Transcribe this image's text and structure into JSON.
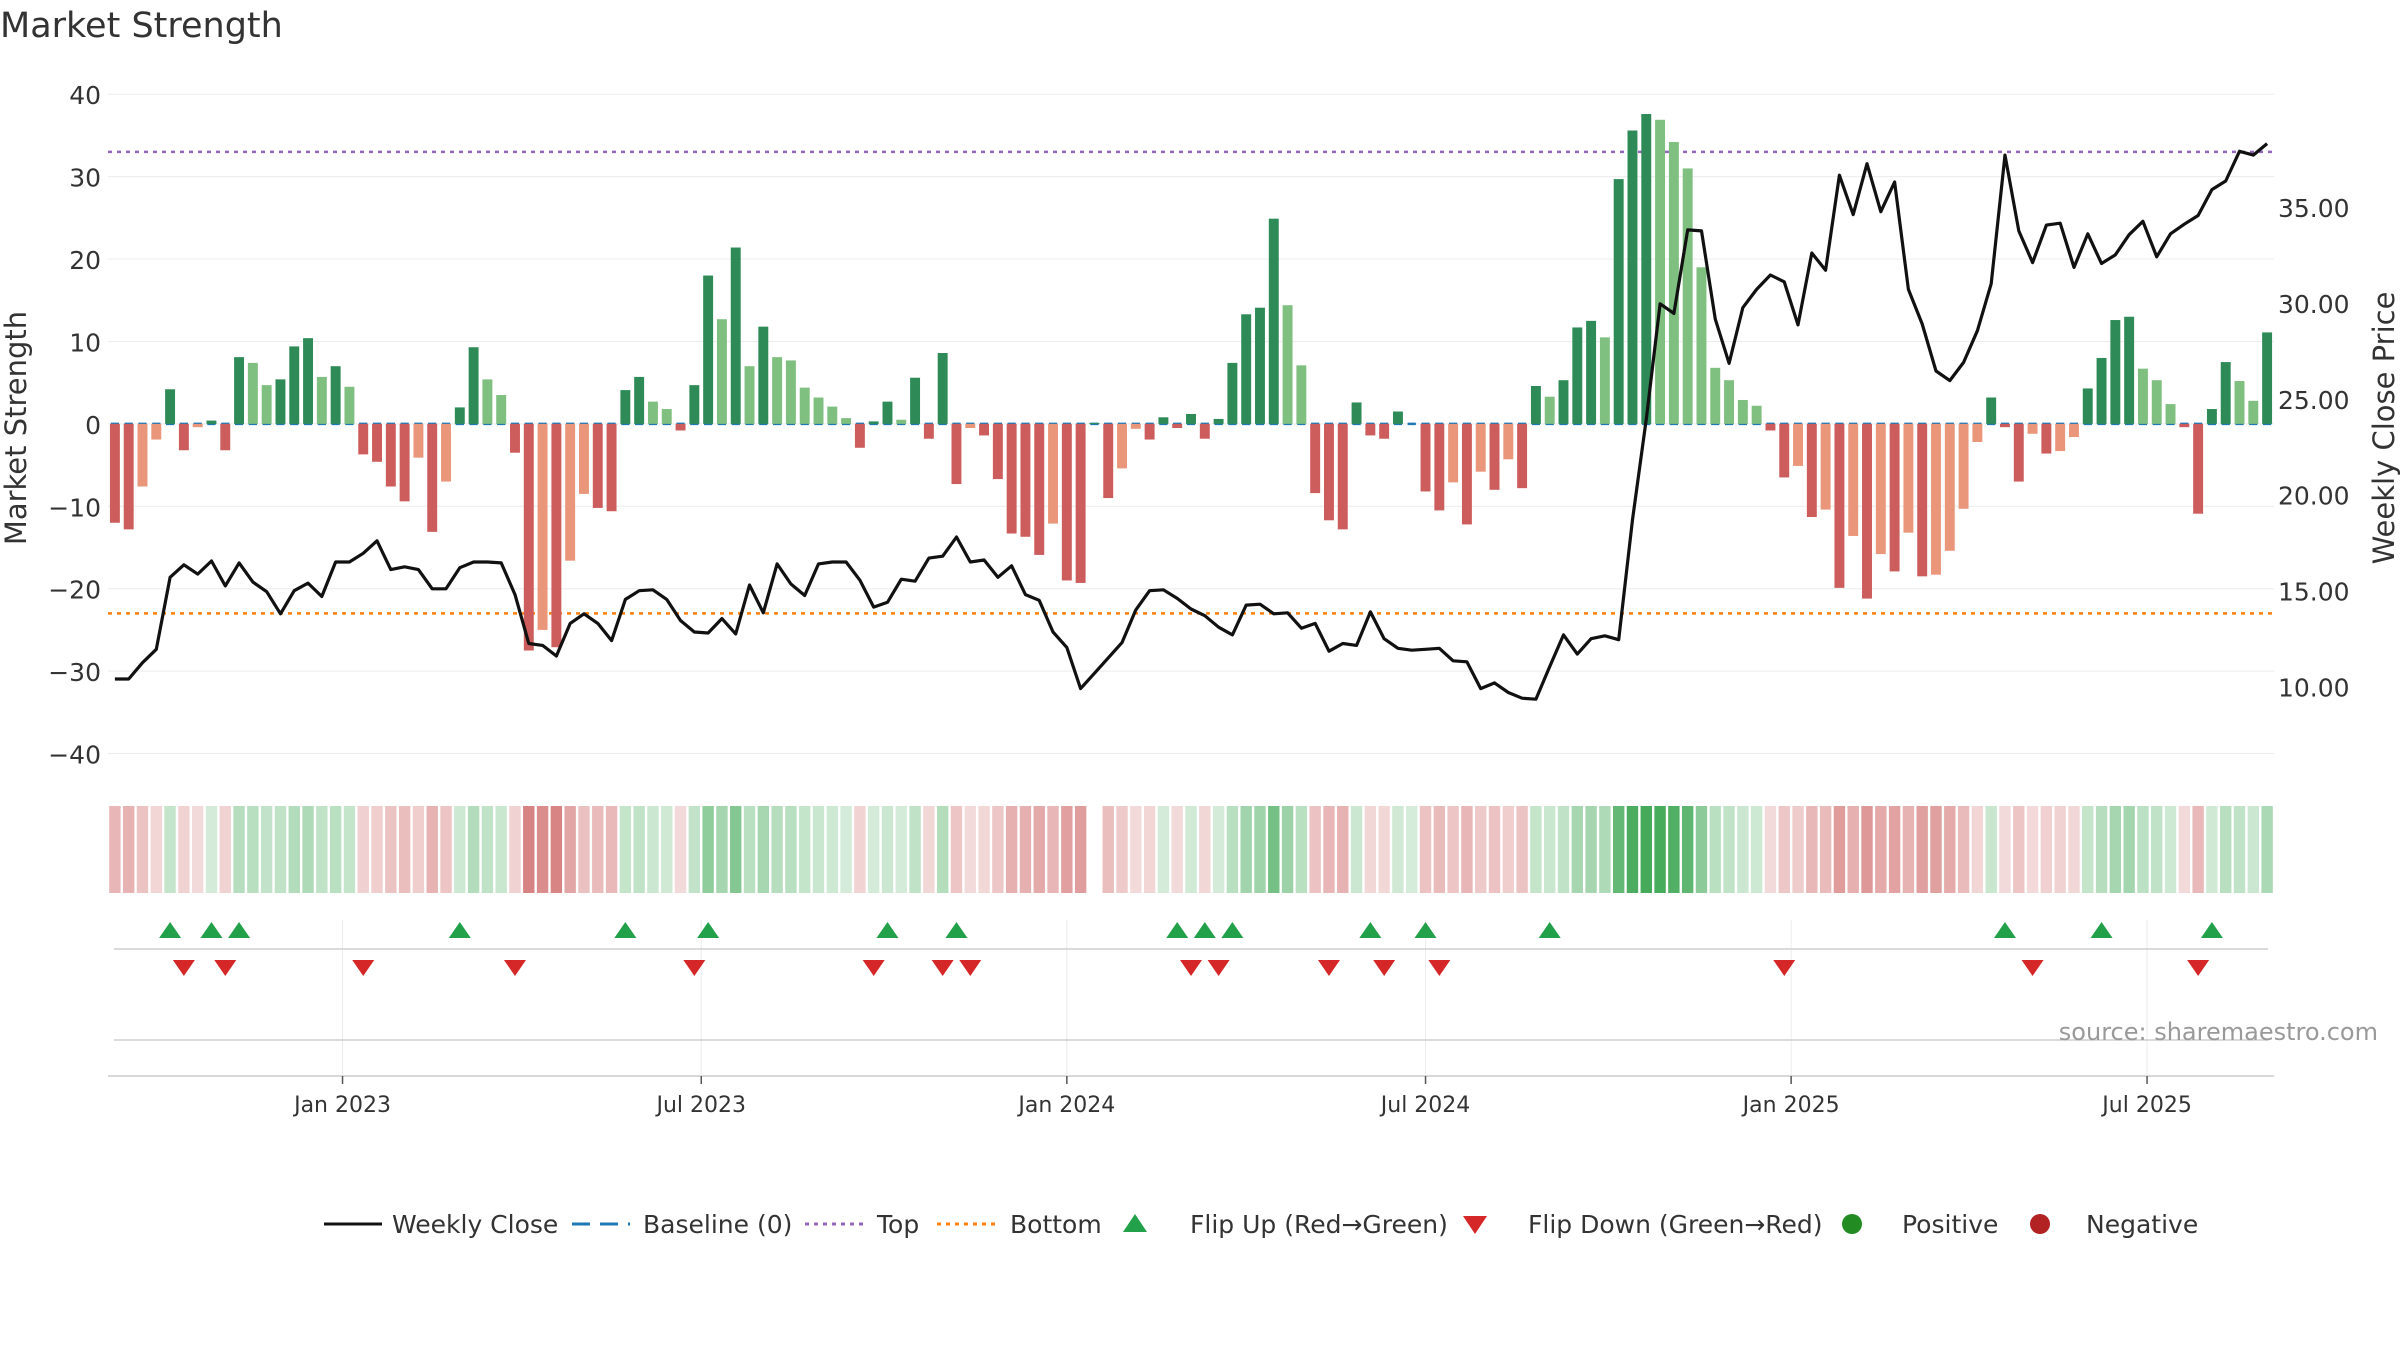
{
  "title": "Market Strength",
  "source": "source: sharemaestro.com",
  "colors": {
    "pos_strong": "#2e8b57",
    "pos_light": "#7fbf7f",
    "neg_strong": "#cd5c5c",
    "neg_light": "#e9967a",
    "price_line": "#111111",
    "baseline": "#1f77b4",
    "top_line": "#9467bd",
    "bottom_line": "#ff7f0e",
    "flip_up": "#22a04a",
    "flip_down": "#d62728",
    "positive": "#228b22",
    "negative": "#b22222"
  },
  "chart_data": {
    "type": "bar",
    "title": "Market Strength",
    "ylabel": "Market Strength",
    "y2label": "Weekly Close Price",
    "ylim": [
      -42,
      41
    ],
    "y2lim": [
      5.71,
      41.35
    ],
    "yticks": [
      40,
      30,
      20,
      10,
      0,
      -10,
      -20,
      -30,
      -40
    ],
    "yticklabels": [
      "40",
      "30",
      "20",
      "10",
      "0",
      "−10",
      "−20",
      "−30",
      "−40"
    ],
    "y2ticks": [
      35,
      30,
      25,
      20,
      15,
      10
    ],
    "y2ticklabels": [
      "35.00",
      "30.00",
      "25.00",
      "20.00",
      "15.00",
      "10.00"
    ],
    "top": 33,
    "bottom": -23,
    "baseline": 0,
    "x_start": "2022-09-15",
    "week_days": 7,
    "xticks": [
      {
        "label": "Jan 2023",
        "week": 17
      },
      {
        "label": "Jul 2023",
        "week": 43
      },
      {
        "label": "Jan 2024",
        "week": 69.5
      },
      {
        "label": "Jul 2024",
        "week": 95.5
      },
      {
        "label": "Jan 2025",
        "week": 122
      },
      {
        "label": "Jul 2025",
        "week": 147.8
      }
    ],
    "strength": [
      -12,
      -12.8,
      -7.6,
      -1.9,
      4.2,
      -3.2,
      -0.4,
      0.4,
      -3.2,
      8.1,
      7.4,
      4.7,
      5.4,
      9.4,
      10.4,
      5.7,
      7,
      4.5,
      -3.7,
      -4.6,
      -7.6,
      -9.4,
      -4.1,
      -13.1,
      -7,
      2,
      9.3,
      5.4,
      3.5,
      -3.5,
      -27.5,
      -25,
      -27.1,
      -16.6,
      -8.5,
      -10.2,
      -10.6,
      4.1,
      5.7,
      2.7,
      1.8,
      -0.8,
      4.7,
      18,
      12.7,
      21.4,
      7,
      11.8,
      8.1,
      7.7,
      4.4,
      3.2,
      2.1,
      0.7,
      -2.9,
      0.3,
      2.7,
      0.5,
      5.6,
      -1.8,
      8.6,
      -7.3,
      -0.5,
      -1.4,
      -6.7,
      -13.3,
      -13.7,
      -15.9,
      -12.1,
      -19,
      -19.3,
      0.1,
      -9,
      -5.4,
      -0.6,
      -1.9,
      0.8,
      -0.5,
      1.2,
      -1.8,
      0.6,
      7.4,
      13.3,
      14.1,
      24.9,
      14.4,
      7.1,
      -8.4,
      -11.7,
      -12.8,
      2.6,
      -1.4,
      -1.8,
      1.5,
      0,
      -8.2,
      -10.5,
      -7.1,
      -12.2,
      -5.8,
      -8,
      -4.3,
      -7.8,
      4.6,
      3.3,
      5.3,
      11.7,
      12.5,
      10.5,
      29.7,
      35.6,
      37.6,
      36.9,
      34.2,
      31,
      19,
      6.8,
      5.3,
      2.9,
      2.2,
      -0.8,
      -6.5,
      -5.1,
      -11.3,
      -10.4,
      -19.9,
      -13.6,
      -21.2,
      -15.8,
      -17.9,
      -13.2,
      -18.5,
      -18.3,
      -15.4,
      -10.3,
      -2.2,
      3.2,
      -0.4,
      -7,
      -1.2,
      -3.6,
      -3.3,
      -1.6,
      4.3,
      8,
      12.6,
      13,
      6.7,
      5.3,
      2.4,
      -0.4,
      -10.9,
      1.8,
      7.5,
      5.2,
      2.8,
      11.1
    ],
    "weekly_close": [
      10.45,
      10.45,
      11.3,
      12,
      15.75,
      16.4,
      15.92,
      16.6,
      15.3,
      16.5,
      15.5,
      15,
      13.85,
      15.05,
      15.45,
      14.75,
      16.55,
      16.55,
      17,
      17.65,
      16.15,
      16.3,
      16.15,
      15.15,
      15.15,
      16.25,
      16.55,
      16.55,
      16.5,
      14.85,
      12.3,
      12.2,
      11.65,
      13.35,
      13.85,
      13.35,
      12.45,
      14.6,
      15.05,
      15.1,
      14.6,
      13.5,
      12.9,
      12.85,
      13.6,
      12.8,
      15.35,
      13.9,
      16.45,
      15.4,
      14.8,
      16.45,
      16.55,
      16.55,
      15.6,
      14.2,
      14.45,
      15.65,
      15.55,
      16.75,
      16.85,
      17.85,
      16.55,
      16.65,
      15.75,
      16.35,
      14.85,
      14.55,
      12.9,
      12.1,
      9.95,
      10.75,
      11.55,
      12.35,
      14.05,
      15.05,
      15.1,
      14.65,
      14.1,
      13.75,
      13.15,
      12.75,
      14.3,
      14.35,
      13.85,
      13.9,
      13.1,
      13.35,
      11.9,
      12.3,
      12.2,
      13.95,
      12.55,
      12.05,
      11.95,
      12,
      12.05,
      11.4,
      11.35,
      9.95,
      10.25,
      9.75,
      9.45,
      9.4,
      11.1,
      12.75,
      11.75,
      12.55,
      12.7,
      12.5,
      18.75,
      24,
      30,
      29.5,
      33.85,
      33.8,
      29.2,
      26.9,
      29.8,
      30.75,
      31.5,
      31.15,
      28.9,
      32.65,
      31.75,
      36.7,
      34.65,
      37.3,
      34.8,
      36.35,
      30.75,
      28.95,
      26.5,
      26,
      26.95,
      28.6,
      31.05,
      37.75,
      33.8,
      32.15,
      34.1,
      34.2,
      31.9,
      33.65,
      32.1,
      32.55,
      33.6,
      34.3,
      32.45,
      33.65,
      34.15,
      34.6,
      35.95,
      36.4,
      37.95,
      37.75,
      38.35
    ],
    "signal_strip": [
      -12,
      -12.8,
      -7.6,
      -1.9,
      4.2,
      -3.2,
      -0.4,
      0.4,
      -3.2,
      8.1,
      7.4,
      4.7,
      5.4,
      9.4,
      10.4,
      5.7,
      7,
      4.5,
      -3.7,
      -4.6,
      -7.6,
      -9.4,
      -4.1,
      -13.1,
      -7,
      2,
      9.3,
      5.4,
      3.5,
      -3.5,
      -27.5,
      -25,
      -27.1,
      -16.6,
      -8.5,
      -10.2,
      -10.6,
      4.1,
      5.7,
      2.7,
      1.8,
      -0.8,
      4.7,
      18,
      12.7,
      21.4,
      7,
      11.8,
      8.1,
      7.7,
      4.4,
      3.2,
      2.1,
      0.7,
      -2.9,
      0.3,
      2.7,
      0.5,
      5.6,
      -1.8,
      8.6,
      -7.3,
      -0.5,
      -1.4,
      -6.7,
      -13.3,
      -13.7,
      -15.9,
      -12.1,
      -19,
      -19.3,
      null,
      -9,
      -5.4,
      -0.6,
      -1.9,
      0.8,
      -0.5,
      1.2,
      -1.8,
      0.6,
      7.4,
      13.3,
      14.1,
      24.9,
      14.4,
      7.1,
      -8.4,
      -11.7,
      -12.8,
      2.6,
      -1.4,
      -1.8,
      1.5,
      0,
      -8.2,
      -10.5,
      -7.1,
      -12.2,
      -5.8,
      -8,
      -4.3,
      -7.8,
      4.6,
      3.3,
      5.3,
      11.7,
      12.5,
      10.5,
      29.7,
      35.6,
      37.6,
      36.9,
      34.2,
      31,
      19,
      6.8,
      5.3,
      2.9,
      2.2,
      -0.8,
      -6.5,
      -5.1,
      -11.3,
      -10.4,
      -19.9,
      -13.6,
      -21.2,
      -15.8,
      -17.9,
      -13.2,
      -18.5,
      -18.3,
      -15.4,
      -10.3,
      -2.2,
      3.2,
      -0.4,
      -7,
      -1.2,
      -3.6,
      -3.3,
      -1.6,
      4.3,
      8,
      12.6,
      13,
      6.7,
      5.3,
      2.4,
      -0.4,
      -10.9,
      1.8,
      7.5,
      5.2,
      2.8,
      11.1
    ],
    "flip_up_weeks": [
      4,
      7,
      9,
      25,
      37,
      43,
      56,
      61,
      77,
      79,
      81,
      91,
      95,
      104,
      137,
      144,
      152
    ],
    "flip_down_weeks": [
      5,
      8,
      18,
      29,
      42,
      55,
      60,
      62,
      78,
      80,
      88,
      92,
      96,
      121,
      139,
      151
    ],
    "legend": [
      {
        "label": "Weekly Close",
        "kind": "solid"
      },
      {
        "label": "Baseline (0)",
        "kind": "dash"
      },
      {
        "label": "Top",
        "kind": "dot-top"
      },
      {
        "label": "Bottom",
        "kind": "dot-bottom"
      },
      {
        "label": "Flip Up (Red→Green)",
        "kind": "tri-up"
      },
      {
        "label": "Flip Down (Green→Red)",
        "kind": "tri-down"
      },
      {
        "label": "Positive",
        "kind": "dot-pos"
      },
      {
        "label": "Negative",
        "kind": "dot-neg"
      }
    ]
  }
}
